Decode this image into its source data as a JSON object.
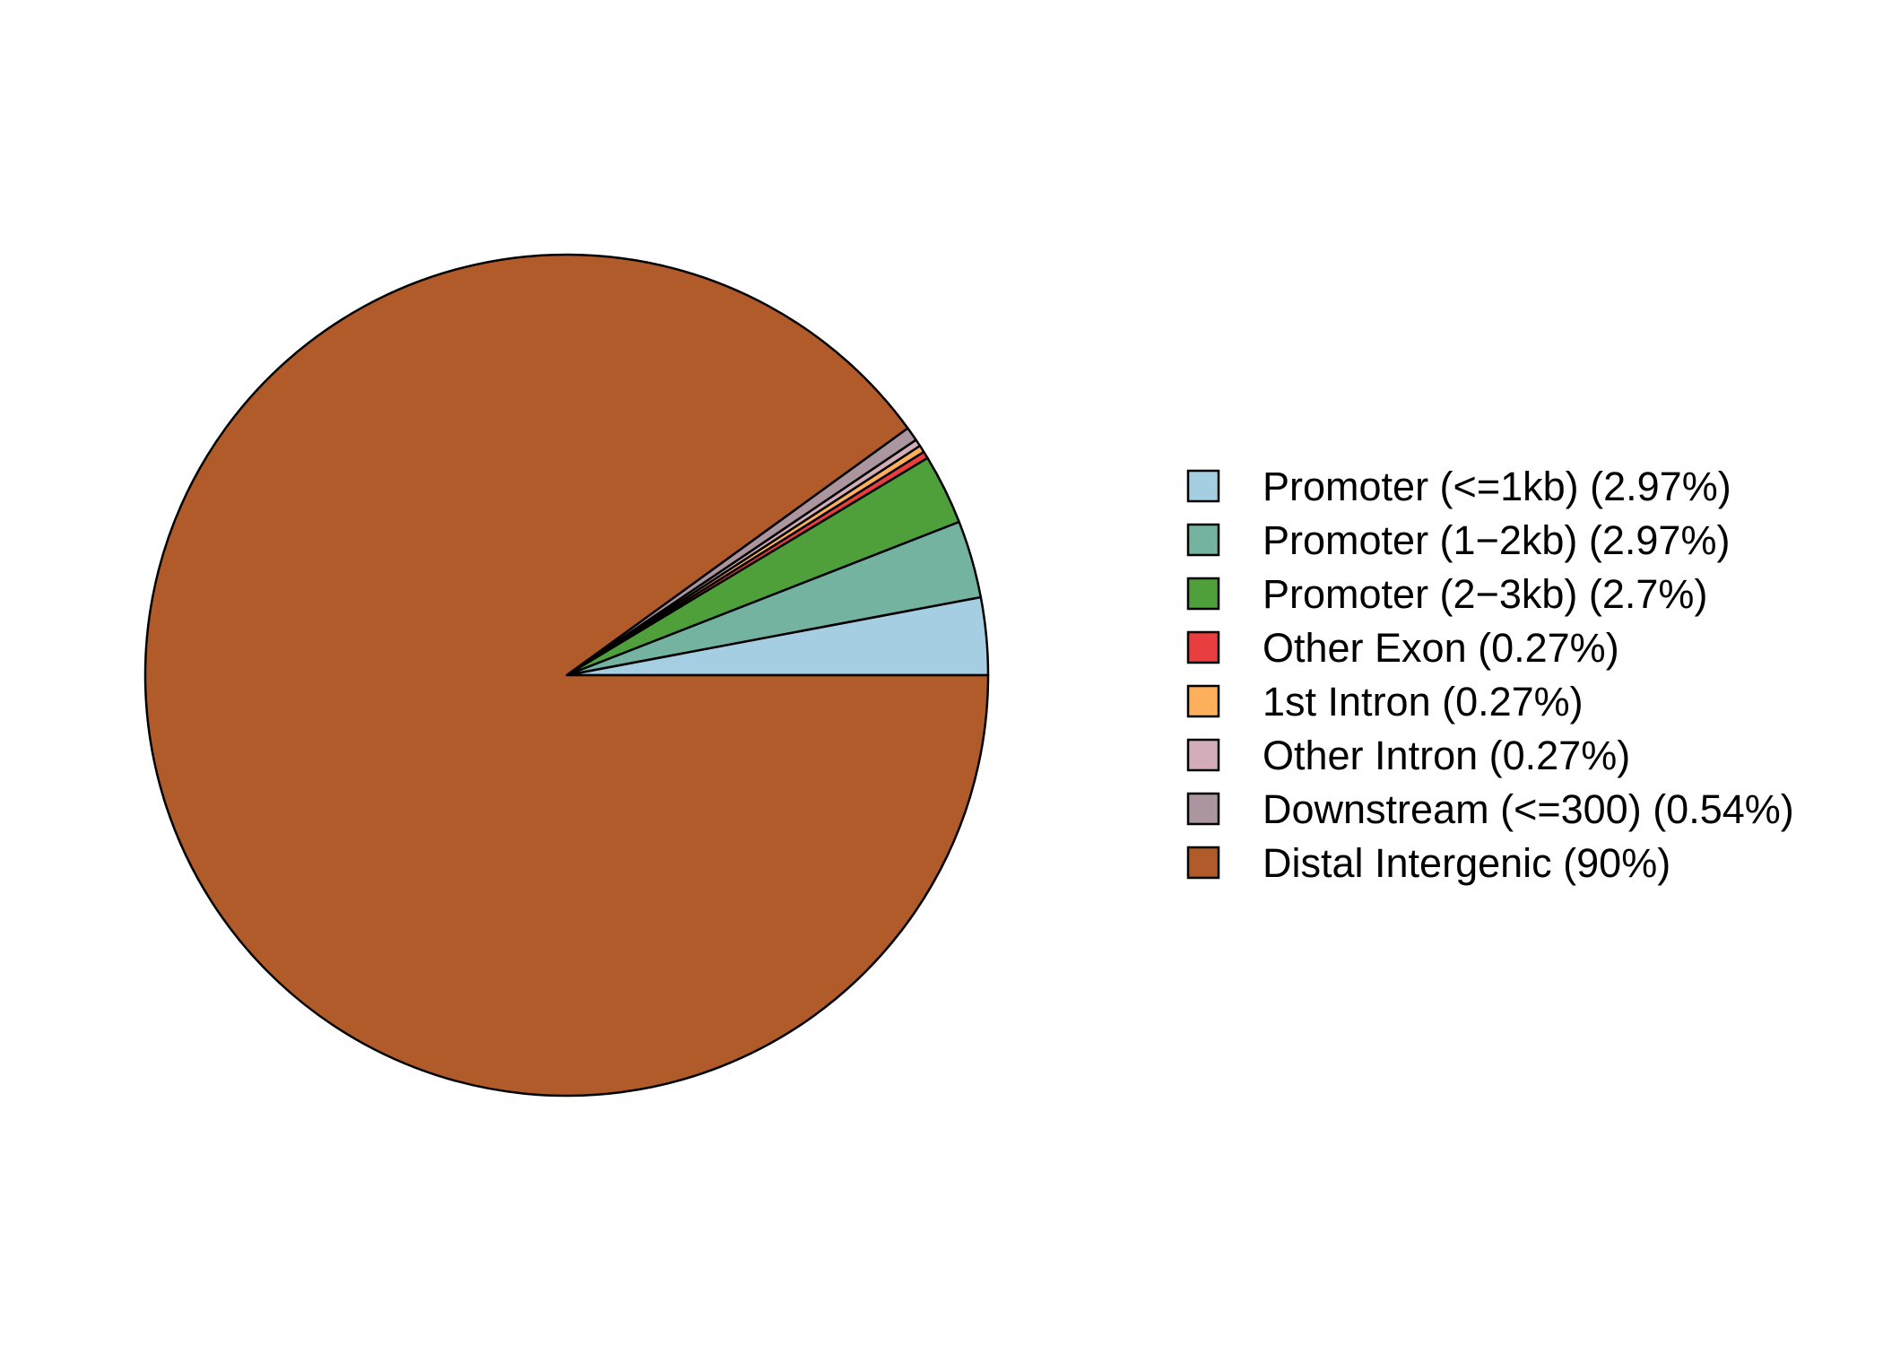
{
  "chart_data": {
    "type": "pie",
    "start_angle_deg": 0,
    "direction": "counterclockwise",
    "legend_position": "right",
    "outline_color": "#000000",
    "slices": [
      {
        "label": "Promoter (<=1kb) (2.97%)",
        "category": "Promoter (<=1kb)",
        "value": 2.97,
        "color": "#A6CEE3"
      },
      {
        "label": "Promoter (1−2kb) (2.97%)",
        "category": "Promoter (1−2kb)",
        "value": 2.97,
        "color": "#73B3A0"
      },
      {
        "label": "Promoter (2−3kb) (2.7%)",
        "category": "Promoter (2−3kb)",
        "value": 2.7,
        "color": "#4FA03B"
      },
      {
        "label": "Other Exon (0.27%)",
        "category": "Other Exon",
        "value": 0.27,
        "color": "#E93E3F"
      },
      {
        "label": "1st Intron (0.27%)",
        "category": "1st Intron",
        "value": 0.27,
        "color": "#FDAF5B"
      },
      {
        "label": "Other Intron (0.27%)",
        "category": "Other Intron",
        "value": 0.27,
        "color": "#D3AEBA"
      },
      {
        "label": "Downstream (<=300) (0.54%)",
        "category": "Downstream (<=300)",
        "value": 0.54,
        "color": "#AB969F"
      },
      {
        "label": "Distal Intergenic (90%)",
        "category": "Distal Intergenic",
        "value": 90,
        "color": "#B15A2A"
      }
    ]
  }
}
